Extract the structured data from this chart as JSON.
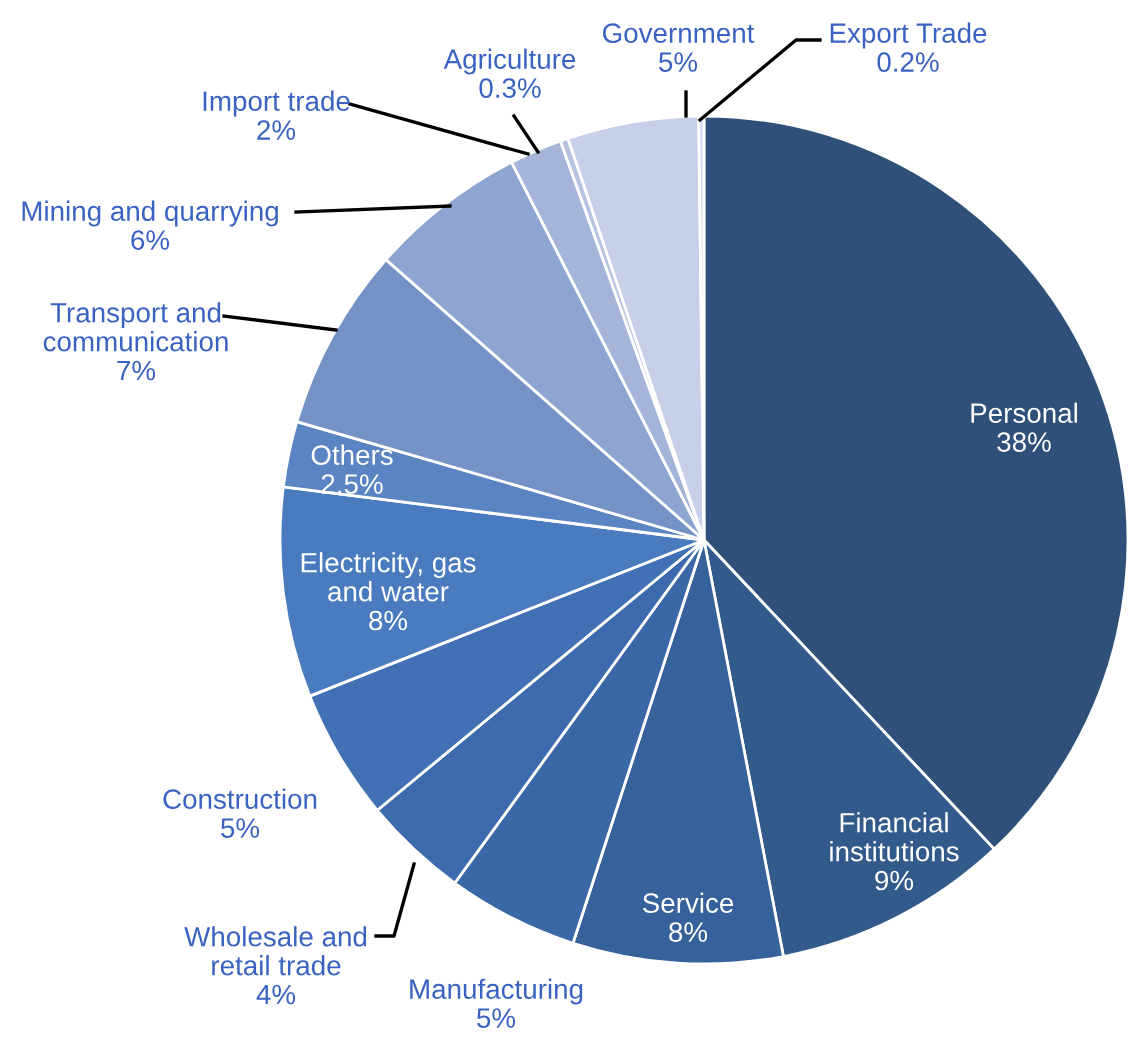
{
  "chart_data": {
    "type": "pie",
    "categories": [
      "Personal",
      "Financial\ninstitutions",
      "Service",
      "Manufacturing",
      "Wholesale and\nretail trade",
      "Construction",
      "Electricity, gas\nand water",
      "Others",
      "Transport and\ncommunication",
      "Mining and quarrying",
      "Import trade",
      "Agriculture",
      "Government",
      "Export Trade"
    ],
    "values": [
      38,
      9,
      8,
      5,
      4,
      5,
      8,
      2.5,
      7,
      6,
      2,
      0.3,
      5,
      0.2
    ],
    "value_labels": [
      "38%",
      "9%",
      "8%",
      "5%",
      "4%",
      "5%",
      "8%",
      "2.5%",
      "7%",
      "6%",
      "2%",
      "0.3%",
      "5%",
      "0.2%"
    ],
    "colors": [
      "#2f5179",
      "#325a8a",
      "#36619a",
      "#3a67a6",
      "#3c6aad",
      "#4170b4",
      "#4a7bbf",
      "#5a84c2",
      "#7592c6",
      "#8fa5d1",
      "#a4b5d9",
      "#b7c3e0",
      "#c7d0e8",
      "#d5dcee"
    ]
  }
}
